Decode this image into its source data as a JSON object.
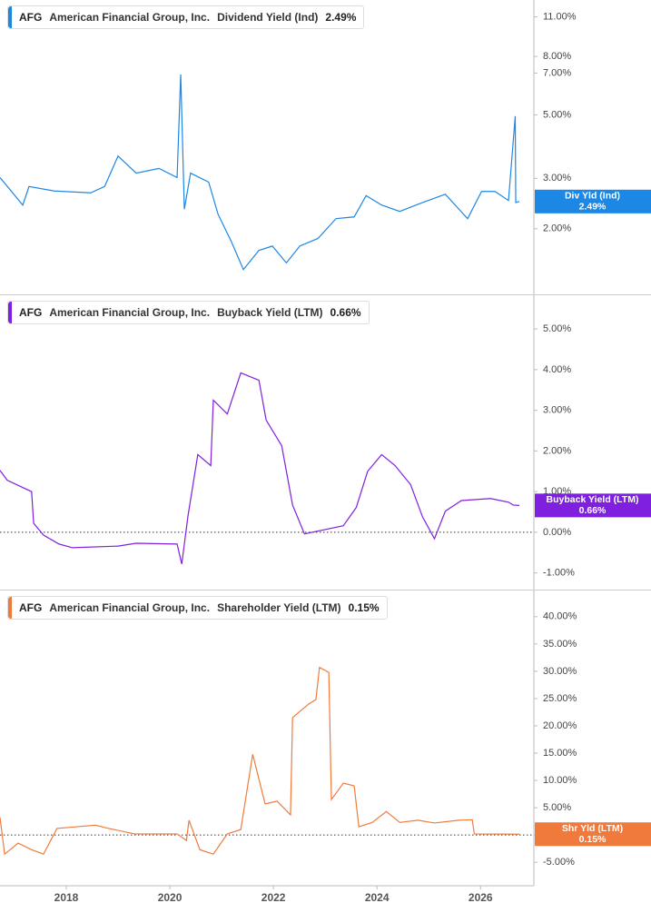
{
  "chart_data": [
    {
      "type": "line",
      "ticker": "AFG",
      "company": "American Financial Group, Inc.",
      "value_label": "2.49%",
      "badge_label": "Div Yld (Ind)",
      "log_scale": true,
      "zero_line": false,
      "xlim": [
        2016.72,
        2027.03
      ],
      "ylim": [
        1.18,
        12.6
      ],
      "yticks": [
        {
          "value": 2,
          "label": "2.00%"
        },
        {
          "value": 3,
          "label": "3.00%"
        },
        {
          "value": 5,
          "label": "5.00%"
        },
        {
          "value": 7,
          "label": "7.00%"
        },
        {
          "value": 8,
          "label": "8.00%"
        },
        {
          "value": 11,
          "label": "11.00%"
        }
      ],
      "x": [
        2016.72,
        2017.16,
        2017.28,
        2017.77,
        2018.47,
        2018.74,
        2019.0,
        2019.35,
        2019.79,
        2020.14,
        2020.21,
        2020.28,
        2020.4,
        2020.75,
        2020.93,
        2021.19,
        2021.42,
        2021.72,
        2021.98,
        2022.25,
        2022.51,
        2022.86,
        2023.21,
        2023.56,
        2023.79,
        2024.09,
        2024.44,
        2024.88,
        2025.32,
        2025.75,
        2026.02,
        2026.28,
        2026.54,
        2026.67,
        2026.68,
        2026.75
      ],
      "series": [
        {
          "name": "Dividend Yield (Ind)",
          "color": "#1c87e5",
          "values": [
            3.02,
            2.42,
            2.81,
            2.71,
            2.67,
            2.81,
            3.59,
            3.13,
            3.25,
            3.02,
            6.92,
            2.34,
            3.13,
            2.91,
            2.25,
            1.8,
            1.44,
            1.68,
            1.74,
            1.52,
            1.74,
            1.85,
            2.17,
            2.2,
            2.61,
            2.42,
            2.3,
            2.47,
            2.64,
            2.17,
            2.7,
            2.7,
            2.51,
            4.95,
            2.47,
            2.49
          ]
        }
      ]
    },
    {
      "type": "line",
      "ticker": "AFG",
      "company": "American Financial Group, Inc.",
      "value_label": "0.66%",
      "badge_label": "Buyback Yield (LTM)",
      "log_scale": false,
      "zero_line": true,
      "xlim": [
        2016.72,
        2027.03
      ],
      "ylim": [
        -1.41,
        5.83
      ],
      "yticks": [
        {
          "value": -1,
          "label": "-1.00%"
        },
        {
          "value": 0,
          "label": "0.00%"
        },
        {
          "value": 1,
          "label": "1.00%"
        },
        {
          "value": 2,
          "label": "2.00%"
        },
        {
          "value": 3,
          "label": "3.00%"
        },
        {
          "value": 4,
          "label": "4.00%"
        },
        {
          "value": 5,
          "label": "5.00%"
        }
      ],
      "x": [
        2016.72,
        2016.86,
        2017.33,
        2017.37,
        2017.56,
        2017.86,
        2018.12,
        2019.0,
        2019.35,
        2020.14,
        2020.23,
        2020.35,
        2020.54,
        2020.79,
        2020.84,
        2021.11,
        2021.37,
        2021.72,
        2021.86,
        2022.16,
        2022.37,
        2022.6,
        2023.35,
        2023.6,
        2023.82,
        2024.09,
        2024.35,
        2024.65,
        2024.88,
        2025.11,
        2025.32,
        2025.63,
        2026.19,
        2026.54,
        2026.63,
        2026.75
      ],
      "series": [
        {
          "name": "Buyback Yield (LTM)",
          "color": "#7f1fe0",
          "values": [
            1.52,
            1.28,
            1.0,
            0.22,
            -0.07,
            -0.29,
            -0.38,
            -0.34,
            -0.27,
            -0.29,
            -0.78,
            0.4,
            1.91,
            1.64,
            3.25,
            2.91,
            3.92,
            3.74,
            2.76,
            2.13,
            0.67,
            -0.04,
            0.16,
            0.61,
            1.5,
            1.91,
            1.64,
            1.17,
            0.38,
            -0.16,
            0.52,
            0.78,
            0.83,
            0.74,
            0.67,
            0.66
          ]
        }
      ]
    },
    {
      "type": "line",
      "ticker": "AFG",
      "company": "American Financial Group, Inc.",
      "value_label": "0.15%",
      "badge_label": "Shr Yld (LTM)",
      "log_scale": false,
      "zero_line": true,
      "xlim": [
        2016.72,
        2027.03
      ],
      "ylim": [
        -9.3,
        44.8
      ],
      "xticks": [
        2018,
        2020,
        2022,
        2024,
        2026
      ],
      "yticks": [
        {
          "value": -5,
          "label": "-5.00%"
        },
        {
          "value": 0,
          "label": "0.00%"
        },
        {
          "value": 5,
          "label": "5.00%"
        },
        {
          "value": 10,
          "label": "10.00%"
        },
        {
          "value": 15,
          "label": "15.00%"
        },
        {
          "value": 20,
          "label": "20.00%"
        },
        {
          "value": 25,
          "label": "25.00%"
        },
        {
          "value": 30,
          "label": "30.00%"
        },
        {
          "value": 35,
          "label": "35.00%"
        },
        {
          "value": 40,
          "label": "40.00%"
        }
      ],
      "x": [
        2016.72,
        2016.81,
        2017.07,
        2017.33,
        2017.56,
        2017.82,
        2018.56,
        2018.82,
        2019.32,
        2020.14,
        2020.32,
        2020.37,
        2020.58,
        2020.84,
        2021.11,
        2021.37,
        2021.6,
        2021.84,
        2022.07,
        2022.33,
        2022.37,
        2022.68,
        2022.82,
        2022.89,
        2023.07,
        2023.12,
        2023.35,
        2023.56,
        2023.65,
        2023.91,
        2024.18,
        2024.44,
        2024.79,
        2025.11,
        2025.58,
        2025.84,
        2025.88,
        2026.75
      ],
      "series": [
        {
          "name": "Shareholder Yield (LTM)",
          "color": "#f07a3c",
          "values": [
            3.2,
            -3.5,
            -1.5,
            -2.7,
            -3.5,
            1.2,
            1.8,
            1.2,
            0.2,
            0.2,
            -1.0,
            2.7,
            -2.7,
            -3.5,
            0.2,
            1.0,
            14.8,
            5.7,
            6.2,
            3.7,
            21.5,
            24.0,
            24.8,
            30.7,
            29.8,
            6.5,
            9.5,
            9.0,
            1.5,
            2.3,
            4.3,
            2.3,
            2.7,
            2.2,
            2.7,
            2.8,
            0.2,
            0.15
          ]
        }
      ]
    }
  ]
}
